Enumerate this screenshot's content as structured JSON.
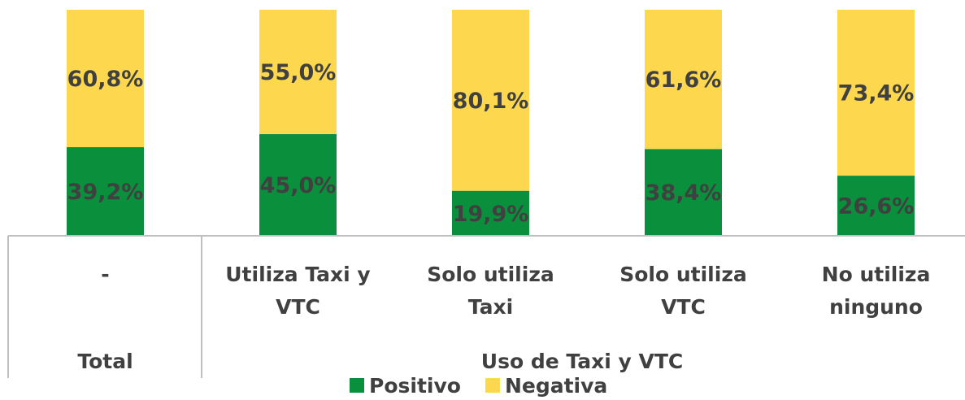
{
  "chart_data": {
    "type": "stacked_bar",
    "categories": [
      "-",
      "Utiliza Taxi y VTC",
      "Solo utiliza Taxi",
      "Solo utiliza VTC",
      "No utiliza ninguno"
    ],
    "groups": [
      {
        "label": "Total",
        "span": 1
      },
      {
        "label": "Uso de Taxi y VTC",
        "span": 4
      }
    ],
    "series": [
      {
        "name": "Positivo",
        "color": "#0a8f3c",
        "values": [
          39.2,
          45.0,
          19.9,
          38.4,
          26.6
        ],
        "value_labels": [
          "39,2%",
          "45,0%",
          "19,9%",
          "38,4%",
          "26,6%"
        ]
      },
      {
        "name": "Negativa",
        "color": "#fdd84e",
        "values": [
          60.8,
          55.0,
          80.1,
          61.6,
          73.4
        ],
        "value_labels": [
          "60,8%",
          "55,0%",
          "80,1%",
          "61,6%",
          "73,4%"
        ]
      }
    ],
    "ylim": [
      0,
      100
    ]
  }
}
